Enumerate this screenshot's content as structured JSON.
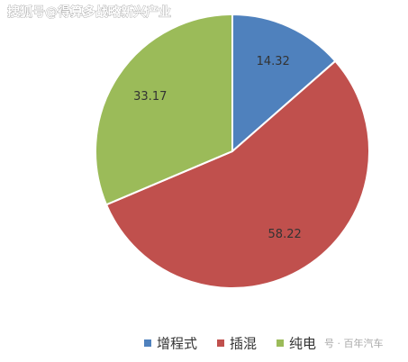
{
  "chart_data": {
    "type": "pie",
    "categories": [
      "增程式",
      "插混",
      "纯电"
    ],
    "values": [
      14.32,
      58.22,
      33.17
    ],
    "colors": [
      "#4f81bd",
      "#c0504d",
      "#9bbb59"
    ],
    "legend": "bottom"
  },
  "watermarks": [
    "搜狐号@得算多战略新兴产业",
    "号 · 百年汽车"
  ]
}
